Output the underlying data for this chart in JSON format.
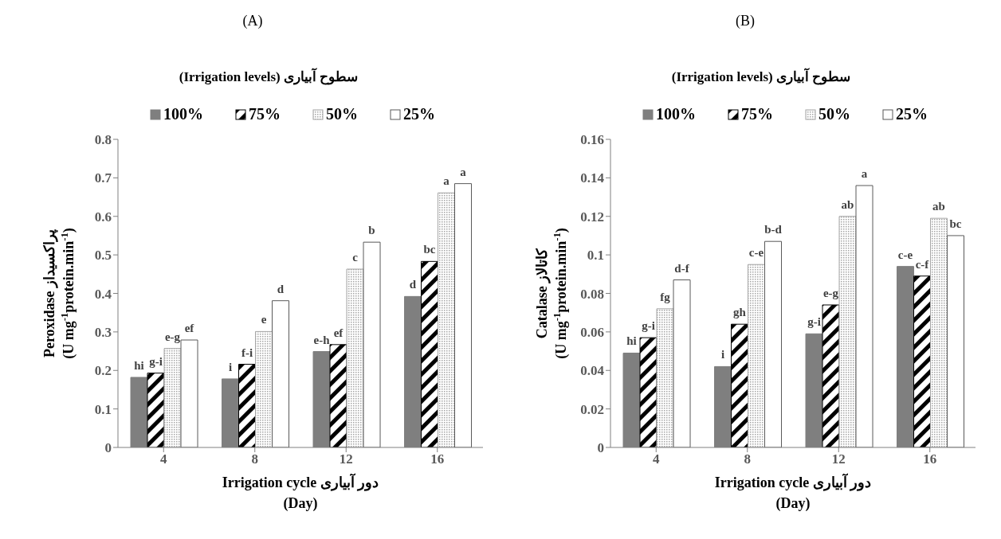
{
  "chart_data": [
    {
      "type": "bar",
      "title": "(A)",
      "legend_title": "سطوح آبیاری (Irrigation levels)",
      "xlabel": "Irrigation cycle دور آبیاری\n(Day)",
      "ylabel": "Peroxidase پراکسیداز\n(U mg$^{-1}$protein.min$^{-1}$)",
      "categories": [
        "4",
        "8",
        "12",
        "16"
      ],
      "ylim": [
        0,
        0.8
      ],
      "yticks": [
        0,
        0.1,
        0.2,
        0.3,
        0.4,
        0.5,
        0.6,
        0.7,
        0.8
      ],
      "grid": false,
      "legend": "top",
      "series": [
        {
          "name": "100%",
          "color": "#7f7f7f",
          "values": [
            0.182,
            0.178,
            0.249,
            0.392
          ],
          "value_labels": [
            "hi",
            "i",
            "e-h",
            "d"
          ]
        },
        {
          "name": "75%",
          "color": "#000000",
          "values": [
            0.193,
            0.216,
            0.267,
            0.483
          ],
          "value_labels": [
            "g-i",
            "f-i",
            "ef",
            "bc"
          ]
        },
        {
          "name": "50%",
          "color": "#a6a6a6",
          "values": [
            0.257,
            0.301,
            0.463,
            0.661
          ],
          "value_labels": [
            "e-g",
            "e",
            "c",
            "a"
          ]
        },
        {
          "name": "25%",
          "color": "#ffffff",
          "values": [
            0.279,
            0.381,
            0.533,
            0.685
          ],
          "value_labels": [
            "ef",
            "d",
            "b",
            "a"
          ]
        }
      ]
    },
    {
      "type": "bar",
      "title": "(B)",
      "legend_title": "سطوح آبیاری (Irrigation levels)",
      "xlabel": "Irrigation cycle دور آبیاری\n(Day)",
      "ylabel": "Catalase کاتالاز\n(U mg$^{-1}$protein.min$^{-1}$)",
      "categories": [
        "4",
        "8",
        "12",
        "16"
      ],
      "ylim": [
        0,
        0.16
      ],
      "yticks": [
        0,
        0.02,
        0.04,
        0.06,
        0.08,
        0.1,
        0.12,
        0.14,
        0.16
      ],
      "grid": false,
      "legend": "top",
      "series": [
        {
          "name": "100%",
          "color": "#7f7f7f",
          "values": [
            0.049,
            0.042,
            0.059,
            0.094
          ],
          "value_labels": [
            "hi",
            "i",
            "g-i",
            "c-e"
          ]
        },
        {
          "name": "75%",
          "color": "#000000",
          "values": [
            0.057,
            0.064,
            0.074,
            0.089
          ],
          "value_labels": [
            "g-i",
            "gh",
            "e-g",
            "c-f"
          ]
        },
        {
          "name": "50%",
          "color": "#a6a6a6",
          "values": [
            0.072,
            0.095,
            0.12,
            0.119
          ],
          "value_labels": [
            "fg",
            "c-e",
            "ab",
            "ab"
          ]
        },
        {
          "name": "25%",
          "color": "#ffffff",
          "values": [
            0.087,
            0.107,
            0.136,
            0.11
          ],
          "value_labels": [
            "d-f",
            "b-d",
            "a",
            "bc"
          ]
        }
      ]
    }
  ]
}
